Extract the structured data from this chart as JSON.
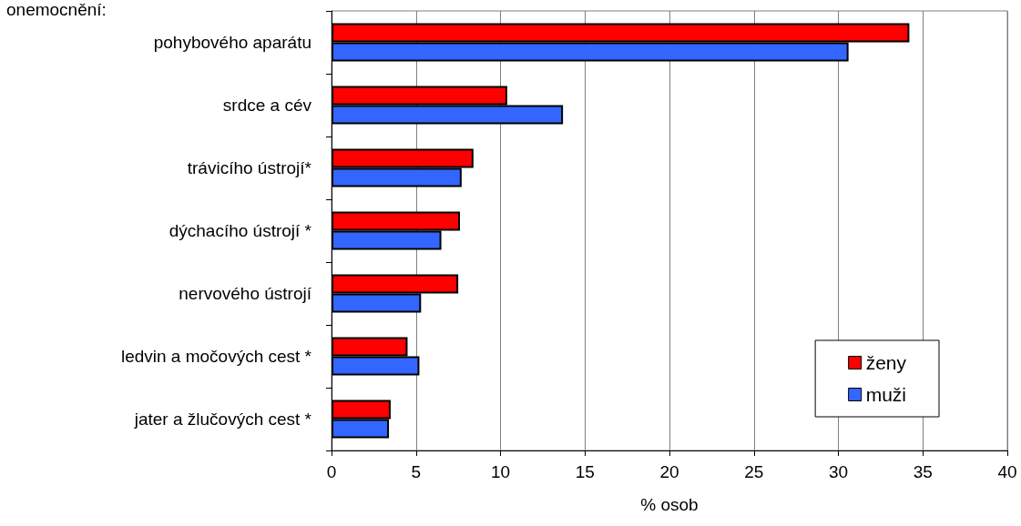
{
  "chart_data": {
    "type": "bar",
    "orientation": "horizontal",
    "ylabel": "onemocnění:",
    "xlabel": "% osob",
    "categories": [
      "pohybového aparátu",
      "srdce a cév",
      "trávicího ústrojí*",
      "dýchacího ústrojí *",
      "nervového ústrojí",
      "ledvin a močových cest *",
      "jater a žlučových cest *"
    ],
    "series": [
      {
        "name": "ženy",
        "color": "#ff0000",
        "values": [
          34.2,
          10.4,
          8.4,
          7.6,
          7.5,
          4.5,
          3.5
        ]
      },
      {
        "name": "muži",
        "color": "#3366ff",
        "values": [
          30.6,
          13.7,
          7.7,
          6.5,
          5.3,
          5.2,
          3.4
        ]
      }
    ],
    "xlim": [
      0,
      40
    ],
    "xticks": [
      0,
      5,
      10,
      15,
      20,
      25,
      30,
      35,
      40
    ],
    "grid": "x",
    "legend": "bottom right"
  }
}
